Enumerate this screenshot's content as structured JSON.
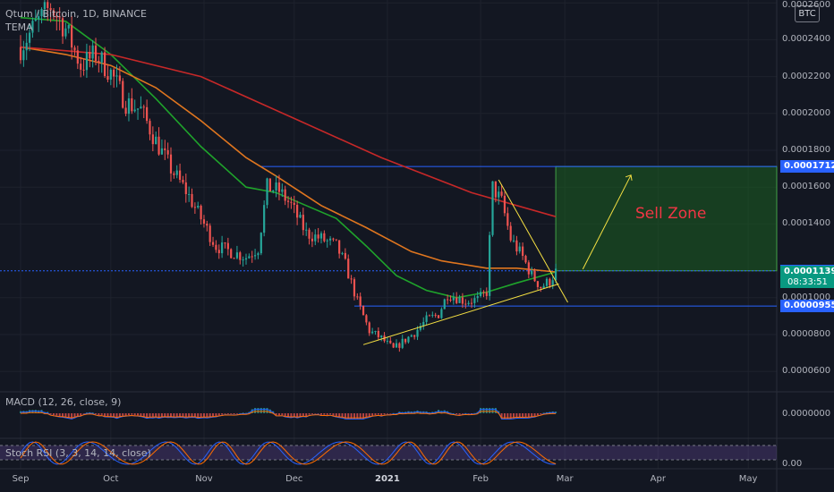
{
  "header": {
    "symbol_line": "Qtum / Bitcoin, 1D, BINANCE",
    "indicator": "TEMA"
  },
  "currency_button": "BTC",
  "price_axis": {
    "labels": [
      {
        "v": 0.00026,
        "t": "0.0002600"
      },
      {
        "v": 0.00024,
        "t": "0.0002400"
      },
      {
        "v": 0.00022,
        "t": "0.0002200"
      },
      {
        "v": 0.0002,
        "t": "0.0002000"
      },
      {
        "v": 0.00018,
        "t": "0.0001800"
      },
      {
        "v": 0.00016,
        "t": "0.0001600"
      },
      {
        "v": 0.00014,
        "t": "0.0001400"
      },
      {
        "v": 0.0001,
        "t": "0.0001000"
      },
      {
        "v": 8e-05,
        "t": "0.0000800"
      },
      {
        "v": 6e-05,
        "t": "0.0000600"
      }
    ],
    "tags": [
      {
        "v": 0.0001712,
        "t": "0.0001712",
        "color": "#2962ff"
      },
      {
        "v": 0.0001146,
        "t": "0.0001146",
        "color": "#2962ff"
      },
      {
        "v": 0.0001139,
        "t": "0.0001139",
        "color": "#089981"
      },
      {
        "v": 9.55e-05,
        "t": "0.0000955",
        "color": "#2962ff"
      }
    ],
    "countdown": "08:33:51"
  },
  "macd": {
    "label": "MACD (12, 26, close, 9)",
    "axis_label": "0.0000000"
  },
  "stoch": {
    "label": "Stoch RSI (3, 3, 14, 14, close)",
    "axis_label": "0.00"
  },
  "time_axis": [
    {
      "d": 0,
      "t": "Sep",
      "bold": false
    },
    {
      "d": 30,
      "t": "Oct",
      "bold": false
    },
    {
      "d": 61,
      "t": "Nov",
      "bold": false
    },
    {
      "d": 91,
      "t": "Dec",
      "bold": false
    },
    {
      "d": 122,
      "t": "2021",
      "bold": true
    },
    {
      "d": 153,
      "t": "Feb",
      "bold": false
    },
    {
      "d": 181,
      "t": "Mar",
      "bold": false
    },
    {
      "d": 212,
      "t": "Apr",
      "bold": false
    },
    {
      "d": 242,
      "t": "May",
      "bold": false
    }
  ],
  "annotation": {
    "text": "Sell Zone",
    "color": "#f23645"
  },
  "colors": {
    "background": "#131722",
    "up": "#26a69a",
    "down": "#ef5350",
    "ma_green": "#1fa32b",
    "ma_orange": "#e0761f",
    "ma_red": "#c62828",
    "level_line": "#2962ff",
    "trend_line": "#f5e042",
    "zone_fill": "#1b5e20"
  },
  "chart_data": {
    "type": "candlestick",
    "symbol": "QTUM/BTC",
    "interval": "1D",
    "exchange": "BINANCE",
    "x_unit": "days since Sep 1 2020",
    "close_keypoints": [
      [
        0,
        0.000236
      ],
      [
        5,
        0.000248
      ],
      [
        10,
        0.000258
      ],
      [
        15,
        0.000246
      ],
      [
        20,
        0.000226
      ],
      [
        25,
        0.000232
      ],
      [
        30,
        0.000222
      ],
      [
        35,
        0.000206
      ],
      [
        40,
        0.000202
      ],
      [
        45,
        0.000185
      ],
      [
        50,
        0.00017
      ],
      [
        55,
        0.000158
      ],
      [
        60,
        0.000143
      ],
      [
        65,
        0.000128
      ],
      [
        70,
        0.000125
      ],
      [
        75,
        0.000122
      ],
      [
        79,
        0.000127
      ],
      [
        82,
        0.00016
      ],
      [
        86,
        0.000158
      ],
      [
        90,
        0.00015
      ],
      [
        95,
        0.000135
      ],
      [
        100,
        0.000132
      ],
      [
        105,
        0.000128
      ],
      [
        108,
        0.000118
      ],
      [
        112,
        9.8e-05
      ],
      [
        116,
        8.2e-05
      ],
      [
        120,
        7.8e-05
      ],
      [
        124,
        7.2e-05
      ],
      [
        127,
        7.6e-05
      ],
      [
        131,
        8.1e-05
      ],
      [
        135,
        8.8e-05
      ],
      [
        139,
        9.1e-05
      ],
      [
        142,
        0.000102
      ],
      [
        145,
        0.0001
      ],
      [
        148,
        9.8e-05
      ],
      [
        152,
        9.9e-05
      ],
      [
        155,
        0.000103
      ],
      [
        157,
        0.00016
      ],
      [
        160,
        0.000152
      ],
      [
        163,
        0.000132
      ],
      [
        167,
        0.000122
      ],
      [
        170,
        0.000112
      ],
      [
        173,
        0.000106
      ],
      [
        176,
        0.000109
      ],
      [
        178,
        0.000114
      ]
    ],
    "moving_averages": [
      {
        "name": "green",
        "points": [
          [
            0,
            0.000252
          ],
          [
            15,
            0.00025
          ],
          [
            30,
            0.000232
          ],
          [
            45,
            0.000208
          ],
          [
            60,
            0.000182
          ],
          [
            75,
            0.00016
          ],
          [
            85,
            0.000157
          ],
          [
            95,
            0.00015
          ],
          [
            105,
            0.000143
          ],
          [
            115,
            0.000128
          ],
          [
            125,
            0.000112
          ],
          [
            135,
            0.000104
          ],
          [
            145,
            0.0001
          ],
          [
            155,
            0.000103
          ],
          [
            165,
            0.000108
          ],
          [
            178,
            0.000114
          ]
        ]
      },
      {
        "name": "orange",
        "points": [
          [
            0,
            0.000236
          ],
          [
            15,
            0.000232
          ],
          [
            30,
            0.000226
          ],
          [
            45,
            0.000214
          ],
          [
            60,
            0.000196
          ],
          [
            75,
            0.000176
          ],
          [
            85,
            0.000166
          ],
          [
            100,
            0.00015
          ],
          [
            115,
            0.000138
          ],
          [
            130,
            0.000125
          ],
          [
            140,
            0.00012
          ],
          [
            155,
            0.000116
          ],
          [
            165,
            0.000116
          ],
          [
            178,
            0.000114
          ]
        ]
      },
      {
        "name": "red",
        "points": [
          [
            0,
            0.000236
          ],
          [
            30,
            0.000232
          ],
          [
            60,
            0.00022
          ],
          [
            90,
            0.000198
          ],
          [
            120,
            0.000176
          ],
          [
            150,
            0.000157
          ],
          [
            178,
            0.000144
          ]
        ]
      }
    ],
    "levels": [
      0.0001712,
      0.0001146,
      9.55e-05
    ],
    "zone": {
      "from_day": 178,
      "to_day": 256,
      "top": 0.0001712,
      "bottom": 0.0001146,
      "label": "Sell Zone"
    },
    "ylim": [
      5e-05,
      0.00026
    ]
  }
}
